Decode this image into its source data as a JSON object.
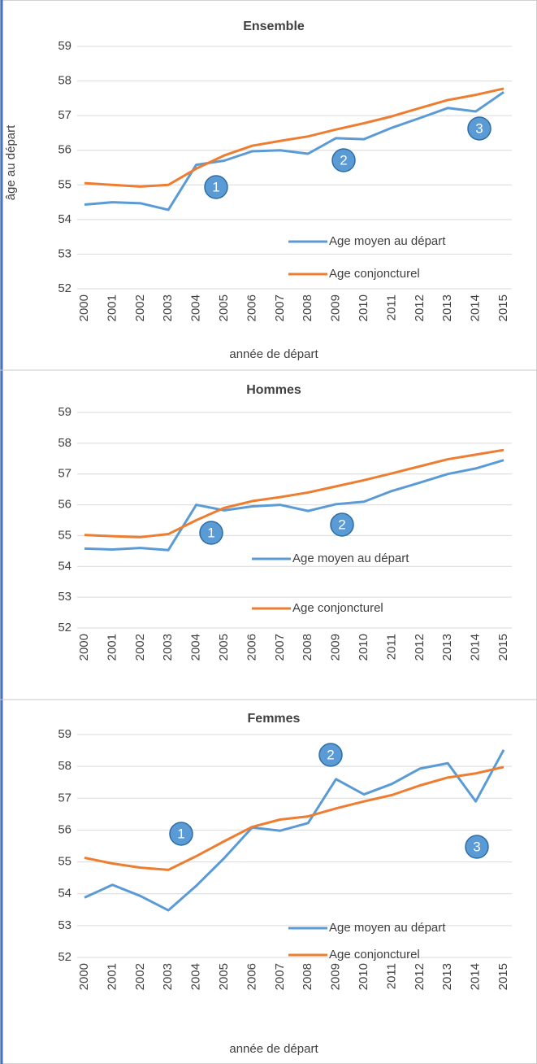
{
  "chart_data": [
    {
      "type": "line",
      "title": "Ensemble",
      "x_label": "année de départ",
      "y_label": "âge au départ",
      "categories": [
        "2000",
        "2001",
        "2002",
        "2003",
        "2004",
        "2005",
        "2006",
        "2007",
        "2008",
        "2009",
        "2010",
        "2011",
        "2012",
        "2013",
        "2014",
        "2015"
      ],
      "series": [
        {
          "name": "Age moyen au départ",
          "color": "#5b9bd5",
          "values": [
            54.43,
            54.5,
            54.47,
            54.28,
            55.58,
            55.7,
            55.97,
            56.0,
            55.9,
            56.35,
            56.32,
            56.65,
            56.93,
            57.22,
            57.12,
            57.68
          ]
        },
        {
          "name": "Age conjoncturel",
          "color": "#ed7d31",
          "values": [
            55.05,
            55.0,
            54.95,
            55.0,
            55.47,
            55.85,
            56.13,
            56.27,
            56.4,
            56.6,
            56.78,
            56.98,
            57.22,
            57.45,
            57.6,
            57.78
          ]
        }
      ],
      "ylim": [
        52,
        59
      ],
      "yticks": [
        52,
        53,
        54,
        55,
        56,
        57,
        58,
        59
      ],
      "grid": true,
      "annotations": [
        "1",
        "2",
        "3"
      ]
    },
    {
      "type": "line",
      "title": "Hommes",
      "categories": [
        "2000",
        "2001",
        "2002",
        "2003",
        "2004",
        "2005",
        "2006",
        "2007",
        "2008",
        "2009",
        "2010",
        "2011",
        "2012",
        "2013",
        "2014",
        "2015"
      ],
      "series": [
        {
          "name": "Age moyen au départ",
          "color": "#5b9bd5",
          "values": [
            54.58,
            54.55,
            54.6,
            54.53,
            56.0,
            55.82,
            55.95,
            56.0,
            55.8,
            56.02,
            56.1,
            56.45,
            56.72,
            57.0,
            57.18,
            57.45
          ]
        },
        {
          "name": "Age conjoncturel",
          "color": "#ed7d31",
          "values": [
            55.02,
            54.98,
            54.95,
            55.05,
            55.5,
            55.9,
            56.12,
            56.25,
            56.4,
            56.6,
            56.8,
            57.02,
            57.25,
            57.48,
            57.63,
            57.78
          ]
        }
      ],
      "ylim": [
        52,
        59
      ],
      "yticks": [
        52,
        53,
        54,
        55,
        56,
        57,
        58,
        59
      ],
      "grid": true,
      "annotations": [
        "1",
        "2"
      ]
    },
    {
      "type": "line",
      "title": "Femmes",
      "x_label": "année de départ",
      "categories": [
        "2000",
        "2001",
        "2002",
        "2003",
        "2004",
        "2005",
        "2006",
        "2007",
        "2008",
        "2009",
        "2010",
        "2011",
        "2012",
        "2013",
        "2014",
        "2015"
      ],
      "series": [
        {
          "name": "Age moyen au départ",
          "color": "#5b9bd5",
          "values": [
            53.88,
            54.28,
            53.93,
            53.48,
            54.25,
            55.12,
            56.08,
            55.98,
            56.22,
            57.6,
            57.12,
            57.45,
            57.93,
            58.1,
            56.9,
            58.52
          ]
        },
        {
          "name": "Age conjoncturel",
          "color": "#ed7d31",
          "values": [
            55.13,
            54.95,
            54.82,
            54.75,
            55.18,
            55.65,
            56.1,
            56.33,
            56.43,
            56.68,
            56.9,
            57.1,
            57.4,
            57.65,
            57.78,
            57.98
          ]
        }
      ],
      "ylim": [
        52,
        59
      ],
      "yticks": [
        52,
        53,
        54,
        55,
        56,
        57,
        58,
        59
      ],
      "grid": true,
      "annotations": [
        "1",
        "2",
        "3"
      ]
    }
  ]
}
